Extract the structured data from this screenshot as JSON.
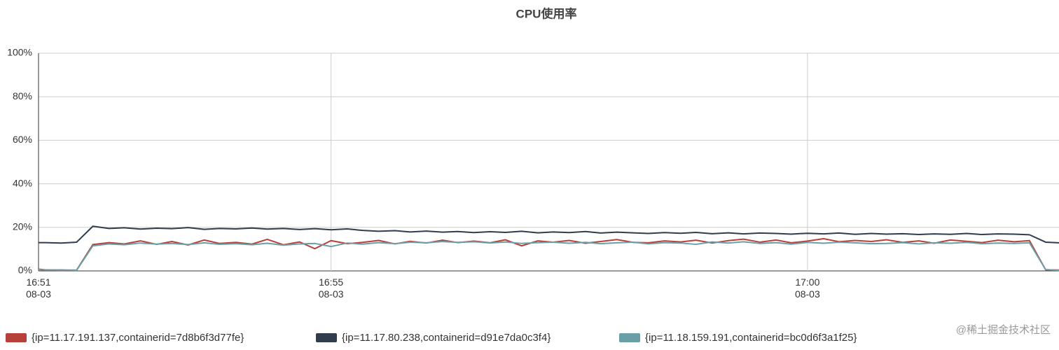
{
  "chart_data": {
    "type": "line",
    "title": "CPU使用率",
    "x": [
      51.93,
      52,
      52.17,
      52.33,
      52.5,
      52.67,
      52.83,
      53,
      53.17,
      53.33,
      53.5,
      53.67,
      53.83,
      54,
      54.17,
      54.33,
      54.5,
      54.67,
      54.83,
      55,
      55.17,
      55.33,
      55.5,
      55.67,
      55.83,
      56,
      56.17,
      56.33,
      56.5,
      56.67,
      56.83,
      57,
      57.17,
      57.33,
      57.5,
      57.67,
      57.83,
      58,
      58.17,
      58.33,
      58.5,
      58.67,
      58.83,
      59,
      59.17,
      59.33,
      59.5,
      59.67,
      59.83,
      60,
      60.17,
      60.33,
      60.5,
      60.67,
      60.83,
      61,
      61.17,
      61.33,
      61.5,
      61.67,
      61.83,
      62,
      62.17,
      62.33,
      62.5,
      62.64
    ],
    "series": [
      {
        "name": "{ip=11.17.191.137,containerid=7d8b6f3d77fe}",
        "color": "#b8403a",
        "values": [
          0.8,
          0.5,
          0.3,
          0.4,
          12.1,
          13.0,
          12.4,
          13.8,
          12.2,
          13.5,
          11.9,
          14.2,
          12.6,
          13.1,
          12.3,
          14.5,
          12.0,
          13.3,
          10.2,
          13.9,
          12.5,
          13.1,
          14.0,
          12.4,
          13.6,
          12.8,
          14.1,
          13.0,
          13.7,
          12.9,
          14.3,
          11.5,
          13.8,
          13.2,
          14.0,
          12.7,
          13.5,
          14.4,
          13.1,
          12.9,
          13.8,
          13.3,
          14.1,
          12.8,
          13.9,
          14.6,
          13.2,
          14.2,
          12.9,
          13.7,
          14.8,
          13.4,
          14.0,
          13.5,
          14.3,
          13.1,
          13.8,
          12.7,
          14.2,
          13.6,
          13.0,
          14.1,
          13.4,
          13.9,
          0.5,
          0.4
        ]
      },
      {
        "name": "{ip=11.17.80.238,containerid=d91e7da0c3f4}",
        "color": "#2f3d4c",
        "values": [
          13,
          13,
          12.8,
          13.2,
          20.5,
          19.5,
          19.8,
          19.2,
          19.6,
          19.4,
          19.9,
          19.1,
          19.5,
          19.3,
          19.7,
          19.2,
          19.5,
          19.0,
          19.4,
          18.9,
          19.3,
          18.6,
          18.2,
          18.5,
          17.9,
          18.3,
          17.8,
          18.1,
          17.6,
          18.0,
          17.7,
          18.2,
          17.5,
          17.9,
          17.6,
          18.1,
          17.4,
          17.8,
          17.5,
          17.2,
          17.6,
          17.3,
          17.7,
          17.1,
          17.5,
          17.0,
          17.4,
          17.2,
          16.9,
          17.3,
          17.0,
          17.4,
          16.8,
          17.2,
          16.9,
          17.1,
          16.7,
          17.0,
          16.8,
          17.2,
          16.7,
          17.0,
          16.9,
          16.6,
          13.2,
          12.9
        ]
      },
      {
        "name": "{ip=11.18.159.191,containerid=bc0d6f3a1f25}",
        "color": "#6a9fa8",
        "values": [
          0.6,
          0.4,
          0.5,
          0.3,
          11.5,
          12.4,
          12.0,
          12.8,
          12.3,
          12.6,
          12.1,
          12.9,
          12.2,
          12.5,
          12.0,
          12.7,
          11.8,
          12.4,
          12.6,
          11.2,
          12.8,
          12.3,
          13.0,
          12.5,
          13.2,
          12.9,
          13.5,
          13.1,
          13.4,
          12.8,
          13.3,
          12.6,
          13.0,
          13.2,
          12.7,
          13.1,
          12.5,
          12.9,
          13.2,
          12.4,
          13.0,
          12.8,
          12.2,
          13.3,
          12.8,
          13.4,
          12.6,
          13.0,
          12.3,
          13.1,
          12.7,
          13.2,
          12.9,
          12.5,
          12.6,
          13.0,
          12.4,
          12.9,
          12.7,
          13.1,
          12.5,
          12.8,
          12.6,
          12.9,
          0.6,
          0.3
        ]
      }
    ],
    "xlim": [
      51.93,
      62.64
    ],
    "xticks": [
      {
        "value": 51.93,
        "label": "16:51\n08-03"
      },
      {
        "value": 55,
        "label": "16:55\n08-03"
      },
      {
        "value": 60,
        "label": "17:00\n08-03"
      }
    ],
    "ylim": [
      0,
      100
    ],
    "yticks": [
      {
        "value": 0,
        "label": "0%"
      },
      {
        "value": 20,
        "label": "20%"
      },
      {
        "value": 40,
        "label": "40%"
      },
      {
        "value": 60,
        "label": "60%"
      },
      {
        "value": 80,
        "label": "80%"
      },
      {
        "value": 100,
        "label": "100%"
      }
    ],
    "grid": true,
    "legend": "bottom"
  },
  "watermark": "@稀土掘金技术社区"
}
